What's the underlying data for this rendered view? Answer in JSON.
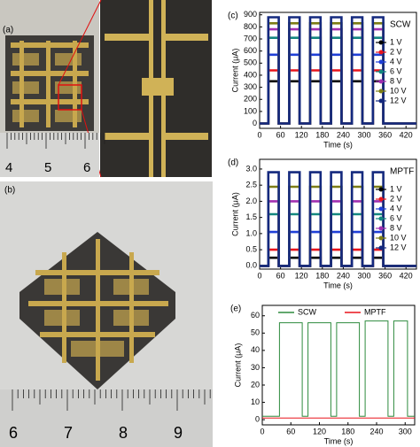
{
  "photos": {
    "a": {
      "label": "(a)",
      "ruler": [
        "4",
        "5",
        "6"
      ]
    },
    "b": {
      "label": "(b)",
      "ruler": [
        "6",
        "7",
        "8",
        "9"
      ]
    }
  },
  "chart_data": [
    {
      "type": "line",
      "label": "(c)",
      "annotation": "SCW",
      "xlabel": "Time (s)",
      "ylabel": "Current (μA)",
      "xlim": [
        0,
        450
      ],
      "xticks": [
        0,
        60,
        120,
        180,
        240,
        300,
        360,
        420
      ],
      "ylim": [
        -40,
        920
      ],
      "yticks": [
        0,
        100,
        200,
        300,
        400,
        500,
        600,
        700,
        800,
        900
      ],
      "legend": "right",
      "x": [
        0,
        25,
        25,
        55,
        55,
        85,
        85,
        115,
        115,
        145,
        145,
        175,
        175,
        205,
        205,
        235,
        235,
        265,
        265,
        295,
        295,
        325,
        325,
        355,
        355,
        450
      ],
      "series": [
        {
          "name": "1 V",
          "color": "#000000",
          "values": [
            0,
            0,
            350,
            350,
            0,
            0,
            350,
            350,
            0,
            0,
            350,
            350,
            0,
            0,
            350,
            350,
            0,
            0,
            350,
            350,
            0,
            0,
            350,
            350,
            0,
            0
          ]
        },
        {
          "name": "2 V",
          "color": "#e8141c",
          "values": [
            0,
            0,
            440,
            440,
            0,
            0,
            440,
            440,
            0,
            0,
            440,
            440,
            0,
            0,
            440,
            440,
            0,
            0,
            440,
            440,
            0,
            0,
            440,
            440,
            0,
            0
          ]
        },
        {
          "name": "4 V",
          "color": "#1f3fd8",
          "values": [
            0,
            0,
            570,
            570,
            0,
            0,
            570,
            570,
            0,
            0,
            570,
            570,
            0,
            0,
            570,
            570,
            0,
            0,
            570,
            570,
            0,
            0,
            570,
            570,
            0,
            0
          ]
        },
        {
          "name": "6 V",
          "color": "#13877f",
          "values": [
            0,
            0,
            710,
            710,
            0,
            0,
            710,
            710,
            0,
            0,
            710,
            710,
            0,
            0,
            710,
            710,
            0,
            0,
            710,
            710,
            0,
            0,
            710,
            710,
            0,
            0
          ]
        },
        {
          "name": "8 V",
          "color": "#a12fb0",
          "values": [
            0,
            0,
            780,
            780,
            0,
            0,
            780,
            780,
            0,
            0,
            780,
            780,
            0,
            0,
            780,
            780,
            0,
            0,
            780,
            780,
            0,
            0,
            780,
            780,
            0,
            0
          ]
        },
        {
          "name": "10 V",
          "color": "#7d7d16",
          "values": [
            0,
            0,
            830,
            830,
            0,
            0,
            830,
            830,
            0,
            0,
            830,
            830,
            0,
            0,
            830,
            830,
            0,
            0,
            830,
            830,
            0,
            0,
            830,
            830,
            0,
            0
          ]
        },
        {
          "name": "12 V",
          "color": "#14297e",
          "values": [
            0,
            0,
            880,
            880,
            0,
            0,
            880,
            880,
            0,
            0,
            880,
            880,
            0,
            0,
            880,
            880,
            0,
            0,
            880,
            880,
            0,
            0,
            880,
            880,
            0,
            0
          ]
        }
      ]
    },
    {
      "type": "line",
      "label": "(d)",
      "annotation": "MPTF",
      "xlabel": "Time (s)",
      "ylabel": "Current (μA)",
      "xlim": [
        0,
        450
      ],
      "xticks": [
        0,
        60,
        120,
        180,
        240,
        300,
        360,
        420
      ],
      "ylim": [
        -0.1,
        3.3
      ],
      "yticks": [
        {
          "value": 0,
          "label": "0.0"
        },
        0.5,
        {
          "value": 1,
          "label": "1.0"
        },
        1.5,
        {
          "value": 2,
          "label": "2.0"
        },
        2.5,
        {
          "value": 3,
          "label": "3.0"
        }
      ],
      "legend": "right",
      "x": [
        0,
        25,
        25,
        55,
        55,
        85,
        85,
        115,
        115,
        145,
        145,
        175,
        175,
        205,
        205,
        235,
        235,
        265,
        265,
        295,
        295,
        325,
        325,
        355,
        355,
        450
      ],
      "series": [
        {
          "name": "1 V",
          "color": "#000000",
          "values": [
            0,
            0,
            0.25,
            0.25,
            0,
            0,
            0.25,
            0.25,
            0,
            0,
            0.25,
            0.25,
            0,
            0,
            0.25,
            0.25,
            0,
            0,
            0.25,
            0.25,
            0,
            0,
            0.25,
            0.25,
            0,
            0
          ]
        },
        {
          "name": "2 V",
          "color": "#e8141c",
          "values": [
            0,
            0,
            0.5,
            0.5,
            0,
            0,
            0.5,
            0.5,
            0,
            0,
            0.5,
            0.5,
            0,
            0,
            0.5,
            0.5,
            0,
            0,
            0.5,
            0.5,
            0,
            0,
            0.5,
            0.5,
            0,
            0
          ]
        },
        {
          "name": "4 V",
          "color": "#1f3fd8",
          "values": [
            0,
            0,
            1.05,
            1.05,
            0,
            0,
            1.05,
            1.05,
            0,
            0,
            1.05,
            1.05,
            0,
            0,
            1.05,
            1.05,
            0,
            0,
            1.05,
            1.05,
            0,
            0,
            1.05,
            1.05,
            0,
            0
          ]
        },
        {
          "name": "6 V",
          "color": "#13877f",
          "values": [
            0,
            0,
            1.6,
            1.6,
            0,
            0,
            1.6,
            1.6,
            0,
            0,
            1.6,
            1.6,
            0,
            0,
            1.6,
            1.6,
            0,
            0,
            1.6,
            1.6,
            0,
            0,
            1.6,
            1.6,
            0,
            0
          ]
        },
        {
          "name": "8 V",
          "color": "#a12fb0",
          "values": [
            0,
            0,
            2,
            2,
            0,
            0,
            2,
            2,
            0,
            0,
            2,
            2,
            0,
            0,
            2,
            2,
            0,
            0,
            2,
            2,
            0,
            0,
            2,
            2,
            0,
            0
          ]
        },
        {
          "name": "10 V",
          "color": "#7d7d16",
          "values": [
            0,
            0,
            2.45,
            2.45,
            0,
            0,
            2.45,
            2.45,
            0,
            0,
            2.45,
            2.45,
            0,
            0,
            2.45,
            2.45,
            0,
            0,
            2.45,
            2.45,
            0,
            0,
            2.45,
            2.45,
            0,
            0
          ]
        },
        {
          "name": "12 V",
          "color": "#14297e",
          "values": [
            0,
            0,
            2.9,
            2.9,
            0,
            0,
            2.9,
            2.9,
            0,
            0,
            2.9,
            2.9,
            0,
            0,
            2.9,
            2.9,
            0,
            0,
            2.9,
            2.9,
            0,
            0,
            2.9,
            2.9,
            0,
            0
          ]
        }
      ]
    },
    {
      "type": "line",
      "label": "(e)",
      "xlabel": "Time (s)",
      "ylabel": "Current (μA)",
      "xlim": [
        0,
        320
      ],
      "xticks": [
        0,
        60,
        120,
        180,
        240,
        300
      ],
      "ylim": [
        -3,
        66
      ],
      "yticks": [
        0,
        10,
        20,
        30,
        40,
        50,
        60
      ],
      "legend": "top",
      "x": [
        0,
        36,
        36,
        84,
        84,
        96,
        96,
        144,
        144,
        156,
        156,
        204,
        204,
        216,
        216,
        264,
        264,
        276,
        276,
        305,
        305,
        320
      ],
      "series": [
        {
          "name": "SCW",
          "color": "#2e8b3e",
          "values": [
            2,
            2,
            56,
            56,
            2,
            2,
            56,
            56,
            2,
            2,
            56,
            56,
            2,
            2,
            57,
            57,
            2,
            2,
            57,
            57,
            2,
            2
          ]
        },
        {
          "name": "MPTF",
          "color": "#e8141c",
          "values": [
            1,
            1,
            1,
            1,
            1,
            1,
            1,
            1,
            1,
            1,
            1,
            1,
            1,
            1,
            1,
            1,
            1,
            1,
            1,
            1,
            1,
            1
          ]
        }
      ]
    }
  ]
}
